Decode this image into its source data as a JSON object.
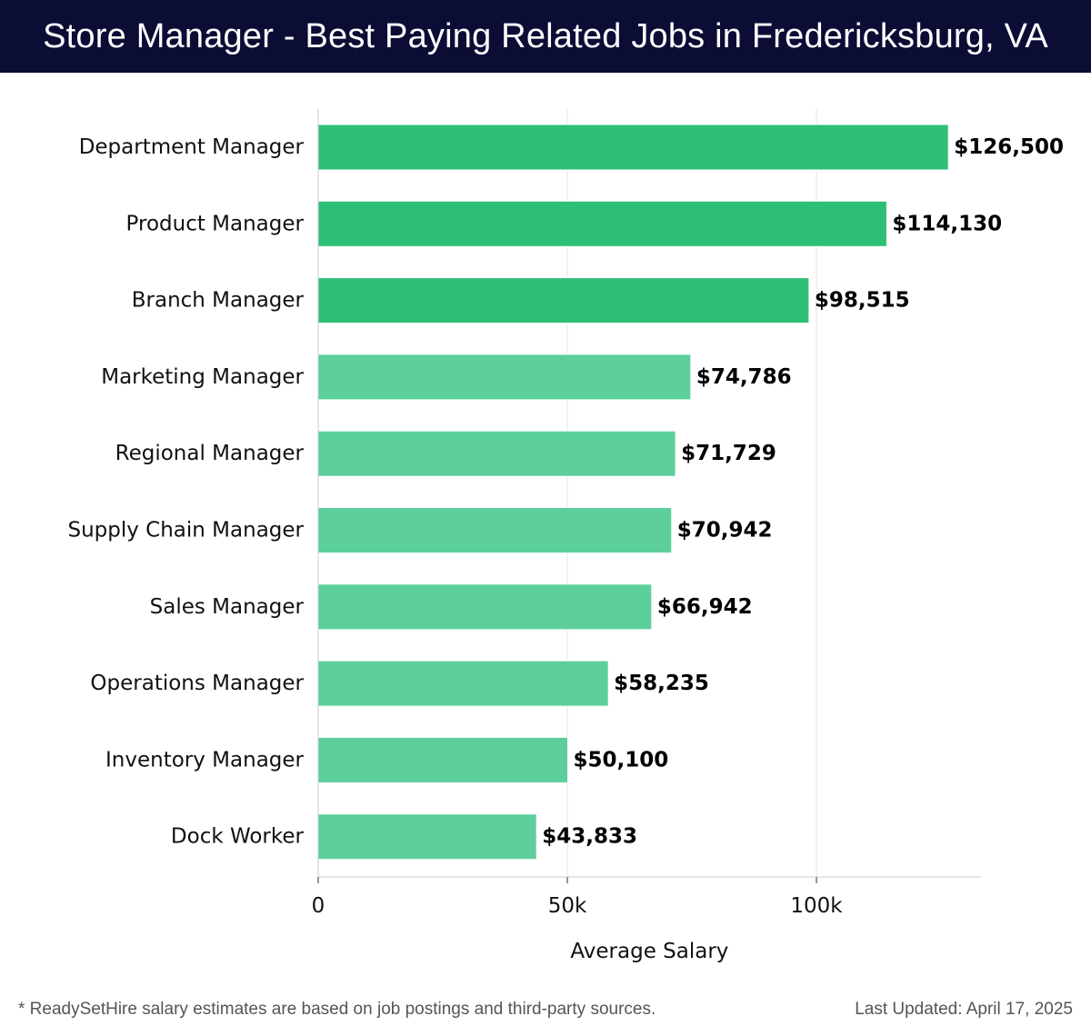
{
  "header": {
    "title": "Store Manager - Best Paying Related Jobs in Fredericksburg, VA"
  },
  "footer": {
    "note": "* ReadySetHire salary estimates are based on job postings and third-party sources.",
    "last_updated": "Last Updated: April 17, 2025"
  },
  "colors": {
    "header_bg": "#0b0d35",
    "bar_dark": "#2ebf77",
    "bar_light": "#5ccf9b",
    "grid": "#e4e4e4"
  },
  "chart_data": {
    "type": "bar",
    "orientation": "horizontal",
    "title": "Store Manager - Best Paying Related Jobs in Fredericksburg, VA",
    "xlabel": "Average Salary",
    "ylabel": "",
    "xlim": [
      0,
      133000
    ],
    "xticks": [
      {
        "value": 0,
        "label": "0"
      },
      {
        "value": 50000,
        "label": "50k"
      },
      {
        "value": 100000,
        "label": "100k"
      }
    ],
    "grid": true,
    "categories": [
      "Department Manager",
      "Product Manager",
      "Branch Manager",
      "Marketing Manager",
      "Regional Manager",
      "Supply Chain Manager",
      "Sales Manager",
      "Operations Manager",
      "Inventory Manager",
      "Dock Worker"
    ],
    "values": [
      126500,
      114130,
      98515,
      74786,
      71729,
      70942,
      66942,
      58235,
      50100,
      43833
    ],
    "value_labels": [
      "$126,500",
      "$114,130",
      "$98,515",
      "$74,786",
      "$71,729",
      "$70,942",
      "$66,942",
      "$58,235",
      "$50,100",
      "$43,833"
    ]
  }
}
